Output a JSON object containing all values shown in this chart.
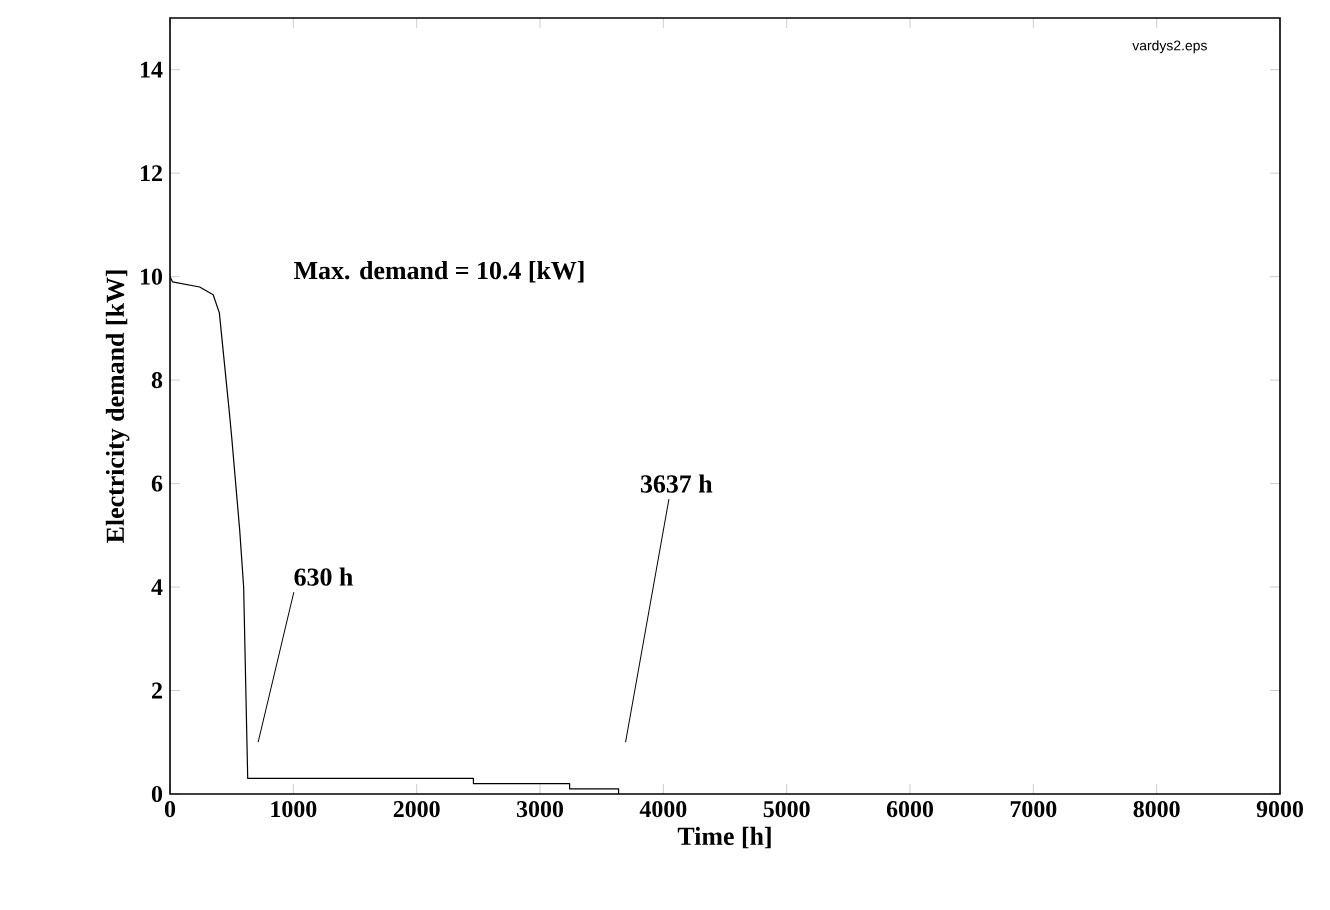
{
  "chart_data": {
    "type": "line",
    "xlabel": "Time [h]",
    "ylabel": "Electricity demand [kW]",
    "x": [
      0,
      20,
      240,
      350,
      400,
      480,
      500,
      565,
      597,
      630,
      2460,
      2460,
      3240,
      3240,
      3637,
      3637
    ],
    "series": [
      {
        "color": "#000000",
        "values": [
          10.0,
          9.9,
          9.8,
          9.65,
          9.3,
          7.4,
          6.9,
          5.1,
          4.0,
          0.3,
          0.3,
          0.2,
          0.2,
          0.1,
          0.1,
          0
        ]
      }
    ],
    "xlim": [
      0,
      9000
    ],
    "ylim": [
      0,
      15
    ],
    "xticks": [
      0,
      1000,
      2000,
      3000,
      4000,
      5000,
      6000,
      7000,
      8000,
      9000
    ],
    "yticks": [
      0,
      2,
      4,
      6,
      8,
      10,
      12,
      14
    ],
    "annotations": [
      "Max. demand = 10.4 [kW]",
      "630 h",
      "3637 h",
      "vardys2.eps"
    ],
    "grid": false,
    "marker": "none",
    "line_style": "solid"
  }
}
